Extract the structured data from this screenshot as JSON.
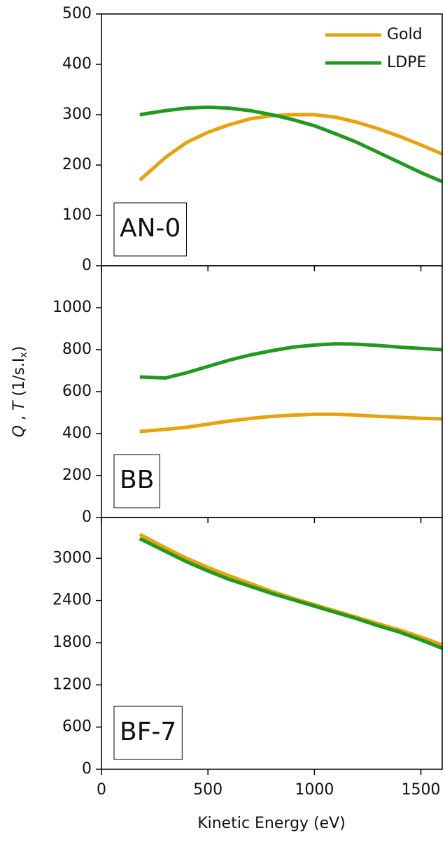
{
  "chart_data": [
    {
      "type": "line",
      "label": "AN-0",
      "legend": "upper right",
      "x": [
        180,
        300,
        400,
        500,
        600,
        700,
        800,
        900,
        1000,
        1100,
        1200,
        1300,
        1400,
        1500,
        1600
      ],
      "xlim": [
        0,
        1600
      ],
      "ylim": [
        0,
        500
      ],
      "yticks": [
        0,
        100,
        200,
        300,
        400,
        500
      ],
      "series": [
        {
          "name": "Gold",
          "color": "#e8a20c",
          "values": [
            170,
            215,
            245,
            265,
            280,
            292,
            298,
            300,
            300,
            295,
            285,
            272,
            257,
            240,
            222
          ]
        },
        {
          "name": "LDPE",
          "color": "#1f9a1f",
          "values": [
            300,
            308,
            313,
            315,
            313,
            308,
            300,
            290,
            278,
            262,
            245,
            225,
            205,
            185,
            167
          ]
        }
      ]
    },
    {
      "type": "line",
      "label": "BB",
      "ylabel": [
        "Q",
        " , ",
        "T",
        " (1/s.I",
        "x",
        ")"
      ],
      "x": [
        180,
        300,
        400,
        500,
        600,
        700,
        800,
        900,
        1000,
        1100,
        1200,
        1300,
        1400,
        1500,
        1600
      ],
      "xlim": [
        0,
        1600
      ],
      "ylim": [
        0,
        1200
      ],
      "yticks": [
        0,
        200,
        400,
        600,
        800,
        1000
      ],
      "series": [
        {
          "name": "Gold",
          "color": "#e8a20c",
          "values": [
            410,
            420,
            430,
            445,
            460,
            472,
            482,
            488,
            492,
            492,
            488,
            482,
            478,
            473,
            470
          ]
        },
        {
          "name": "LDPE",
          "color": "#1f9a1f",
          "values": [
            670,
            665,
            690,
            720,
            750,
            775,
            795,
            812,
            822,
            828,
            826,
            820,
            812,
            806,
            800
          ]
        }
      ]
    },
    {
      "type": "line",
      "label": "BF-7",
      "xlabel": "Kinetic Energy (eV)",
      "x": [
        180,
        300,
        400,
        500,
        600,
        700,
        800,
        900,
        1000,
        1100,
        1200,
        1300,
        1400,
        1500,
        1600
      ],
      "xlim": [
        0,
        1600
      ],
      "xticks": [
        0,
        500,
        1000,
        1500
      ],
      "ylim": [
        0,
        3580
      ],
      "yticks": [
        0,
        600,
        1200,
        1800,
        2400,
        3000
      ],
      "series": [
        {
          "name": "Gold",
          "color": "#e8a20c",
          "values": [
            3340,
            3150,
            3000,
            2870,
            2750,
            2640,
            2530,
            2430,
            2340,
            2250,
            2160,
            2070,
            1980,
            1880,
            1770
          ]
        },
        {
          "name": "LDPE",
          "color": "#1f9a1f",
          "values": [
            3280,
            3100,
            2950,
            2820,
            2700,
            2600,
            2500,
            2410,
            2320,
            2230,
            2140,
            2040,
            1950,
            1840,
            1720
          ]
        }
      ]
    }
  ]
}
